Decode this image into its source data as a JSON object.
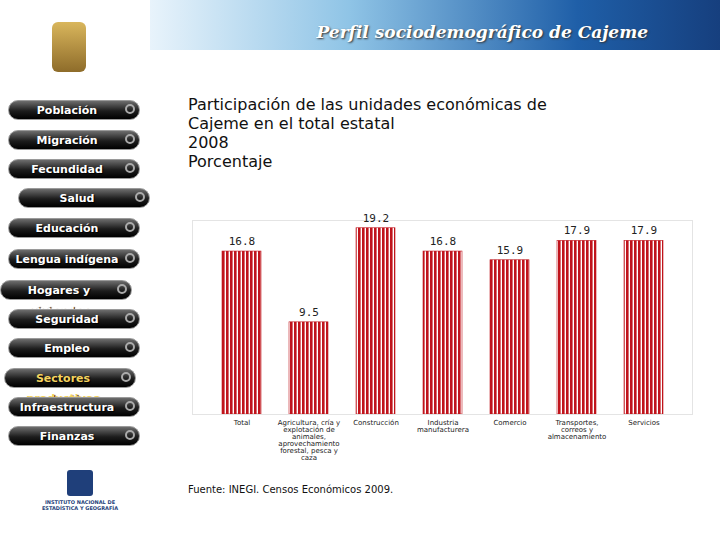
{
  "page": {
    "header": "Perfil sociodemográfico de Cajeme",
    "menu": [
      "Población",
      "Migración",
      "Fecundidad",
      "Salud",
      "Educación",
      "Lengua indígena",
      "Hogares y viviendas",
      "Seguridad",
      "Empleo",
      "Sectores productivos",
      "Infraestructura",
      "Finanzas"
    ],
    "active_menu": "Sectores productivos",
    "logo": "INSTITUTO NACIONAL DE ESTADÍSTICA Y GEOGRAFÍA"
  },
  "chart_data": {
    "type": "bar",
    "title": "Participación de las unidades económicas de Cajeme en el total estatal",
    "subtitle": [
      "2008",
      "Porcentaje"
    ],
    "source": "Fuente: INEGI. Censos Económicos 2009.",
    "categories": [
      "Total",
      "Agricultura, cría y explotación de animales, aprovechamiento forestal, pesca y caza",
      "Construcción",
      "Industria manufacturera",
      "Comercio",
      "Transportes, correos y almacenamiento",
      "Servicios"
    ],
    "values": [
      16.8,
      9.5,
      19.2,
      16.8,
      15.9,
      17.9,
      17.9
    ],
    "color": "#c0141c",
    "ylim": [
      0,
      20
    ],
    "data_labels": true,
    "tick_labels": "x",
    "grid": false
  }
}
